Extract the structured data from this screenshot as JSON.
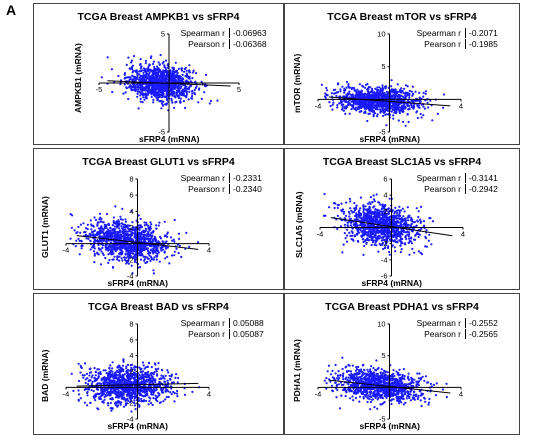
{
  "figure_label": "A",
  "chart_data": [
    {
      "type": "scatter",
      "title": "TCGA Breast AMPKB1 vs sFRP4",
      "xlabel": "sFRP4 (mRNA)",
      "ylabel": "AMPKB1 (mRNA)",
      "xlim": [
        -5,
        5
      ],
      "ylim": [
        -5,
        5
      ],
      "x_ticks": [
        "-5",
        "5"
      ],
      "y_ticks": [
        "5",
        "-5"
      ],
      "stats": [
        {
          "label": "Spearman r",
          "value": "-0.06963"
        },
        {
          "label": "Pearson r",
          "value": "-0.06368"
        }
      ],
      "color": "#1a1aff",
      "points": {
        "n": 1100,
        "x_mean": -0.6,
        "x_sd": 1.2,
        "y_mean": 0.0,
        "y_sd": 0.9,
        "slope": -0.06
      }
    },
    {
      "type": "scatter",
      "title": "TCGA Breast mTOR vs sFRP4",
      "xlabel": "sFRP4 (mRNA)",
      "ylabel": "mTOR (mRNA)",
      "xlim": [
        -4,
        4
      ],
      "ylim": [
        -5,
        10
      ],
      "x_ticks": [
        "-4",
        "4"
      ],
      "y_ticks": [
        "10",
        "5",
        "-5"
      ],
      "stats": [
        {
          "label": "Spearman r",
          "value": "-0.2071"
        },
        {
          "label": "Pearson r",
          "value": "-0.1985"
        }
      ],
      "color": "#1a1aff",
      "points": {
        "n": 1100,
        "x_mean": -0.6,
        "x_sd": 1.2,
        "y_mean": -0.2,
        "y_sd": 1.0,
        "slope": -0.2
      }
    },
    {
      "type": "scatter",
      "title": "TCGA Breast GLUT1 vs sFRP4",
      "xlabel": "sFRP4 (mRNA)",
      "ylabel": "GLUT1 (mRNA)",
      "xlim": [
        -4,
        4
      ],
      "ylim": [
        -4,
        8
      ],
      "x_ticks": [
        "-4",
        "4"
      ],
      "y_ticks": [
        "8",
        "6",
        "4",
        "2",
        "-2",
        "-4"
      ],
      "stats": [
        {
          "label": "Spearman r",
          "value": "-0.2331"
        },
        {
          "label": "Pearson r",
          "value": "-0.2340"
        }
      ],
      "color": "#1a1aff",
      "points": {
        "n": 1100,
        "x_mean": -0.6,
        "x_sd": 1.2,
        "y_mean": 0.3,
        "y_sd": 1.2,
        "slope": -0.25
      }
    },
    {
      "type": "scatter",
      "title": "TCGA Breast SLC1A5 vs sFRP4",
      "xlabel": "sFRP4 (mRNA)",
      "ylabel": "SLC1A5 (mRNA)",
      "xlim": [
        -4,
        4
      ],
      "ylim": [
        -6,
        6
      ],
      "x_ticks": [
        "-4",
        "4"
      ],
      "y_ticks": [
        "6",
        "4",
        "2",
        "-2",
        "-4",
        "-6"
      ],
      "stats": [
        {
          "label": "Spearman r",
          "value": "-0.3141"
        },
        {
          "label": "Pearson r",
          "value": "-0.2942"
        }
      ],
      "color": "#1a1aff",
      "points": {
        "n": 1100,
        "x_mean": -0.6,
        "x_sd": 1.1,
        "y_mean": 0.3,
        "y_sd": 1.3,
        "slope": -0.33
      }
    },
    {
      "type": "scatter",
      "title": "TCGA Breast BAD vs sFRP4",
      "xlabel": "sFRP4 (mRNA)",
      "ylabel": "BAD (mRNA)",
      "xlim": [
        -4,
        4
      ],
      "ylim": [
        -4,
        8
      ],
      "x_ticks": [
        "-4",
        "4"
      ],
      "y_ticks": [
        "8",
        "6",
        "4",
        "2",
        "-2",
        "-4"
      ],
      "stats": [
        {
          "label": "Spearman r",
          "value": "0.05088"
        },
        {
          "label": "Pearson r",
          "value": "0.05087"
        }
      ],
      "color": "#1a1aff",
      "points": {
        "n": 1100,
        "x_mean": -0.6,
        "x_sd": 1.2,
        "y_mean": 0.3,
        "y_sd": 1.2,
        "slope": 0.05
      }
    },
    {
      "type": "scatter",
      "title": "TCGA Breast PDHA1 vs sFRP4",
      "xlabel": "sFRP4 (mRNA)",
      "ylabel": "PDHA1 (mRNA)",
      "xlim": [
        -4,
        4
      ],
      "ylim": [
        -5,
        10
      ],
      "x_ticks": [
        "-4",
        "4"
      ],
      "y_ticks": [
        "10",
        "5",
        "-5"
      ],
      "stats": [
        {
          "label": "Spearman r",
          "value": "-0.2552"
        },
        {
          "label": "Pearson r",
          "value": "-0.2565"
        }
      ],
      "color": "#1a1aff",
      "points": {
        "n": 1100,
        "x_mean": -0.6,
        "x_sd": 1.2,
        "y_mean": 0.3,
        "y_sd": 1.2,
        "slope": -0.3
      }
    }
  ]
}
